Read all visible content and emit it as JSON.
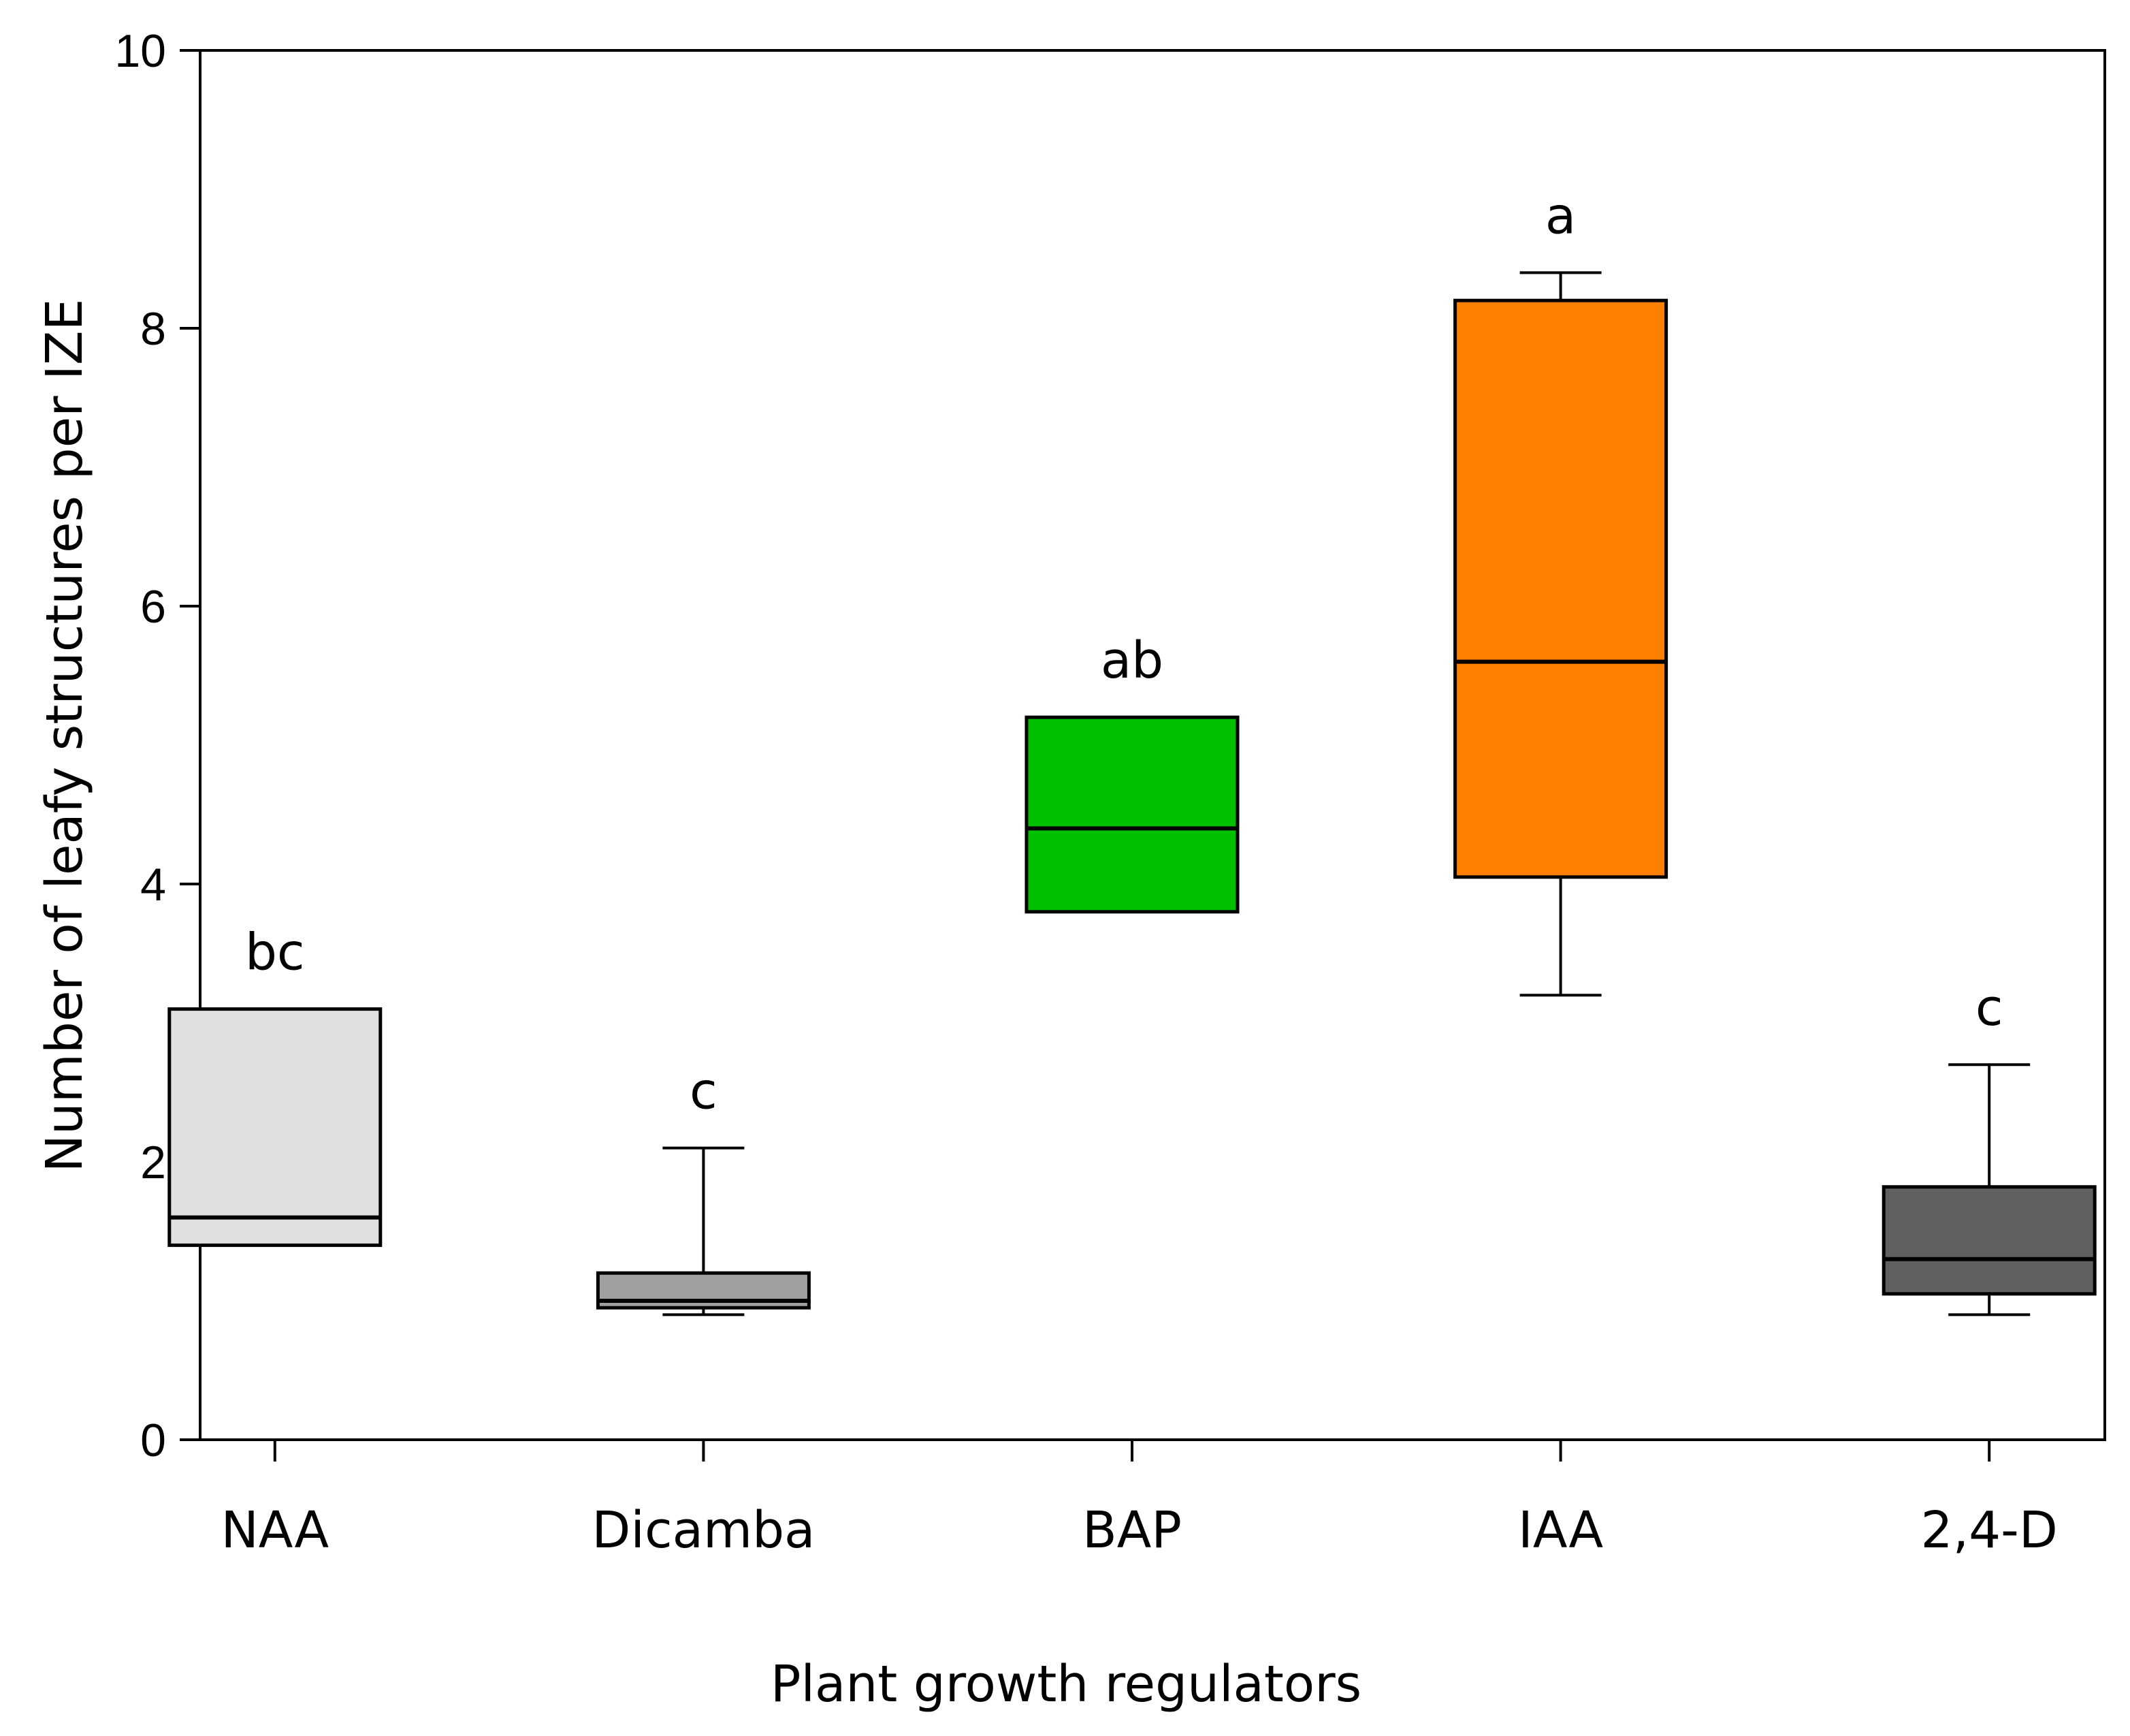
{
  "chart_data": {
    "type": "boxplot",
    "title": "",
    "xlabel": "Plant growth regulators",
    "ylabel": "Number of leafy structures per IZE",
    "ylim": [
      0,
      10
    ],
    "yticks": [
      0,
      2,
      4,
      6,
      8,
      10
    ],
    "categories": [
      "NAA",
      "Dicamba",
      "BAP",
      "IAA",
      "2,4-D"
    ],
    "boxes": [
      {
        "category": "NAA",
        "min": 1.4,
        "q1": 1.4,
        "median": 1.6,
        "q3": 3.1,
        "max": 3.1,
        "significance": "bc",
        "color": "#e0e0e0"
      },
      {
        "category": "Dicamba",
        "min": 0.9,
        "q1": 0.95,
        "median": 1.0,
        "q3": 1.2,
        "max": 2.1,
        "significance": "c",
        "color": "#a0a0a0"
      },
      {
        "category": "BAP",
        "min": 3.8,
        "q1": 3.8,
        "median": 4.4,
        "q3": 5.2,
        "max": 5.2,
        "significance": "ab",
        "color": "#00c000"
      },
      {
        "category": "IAA",
        "min": 3.2,
        "q1": 4.05,
        "median": 5.6,
        "q3": 8.2,
        "max": 8.4,
        "significance": "a",
        "color": "#ff8000"
      },
      {
        "category": "2,4-D",
        "min": 0.9,
        "q1": 1.05,
        "median": 1.3,
        "q3": 1.82,
        "max": 2.7,
        "significance": "c",
        "color": "#606060"
      }
    ]
  }
}
